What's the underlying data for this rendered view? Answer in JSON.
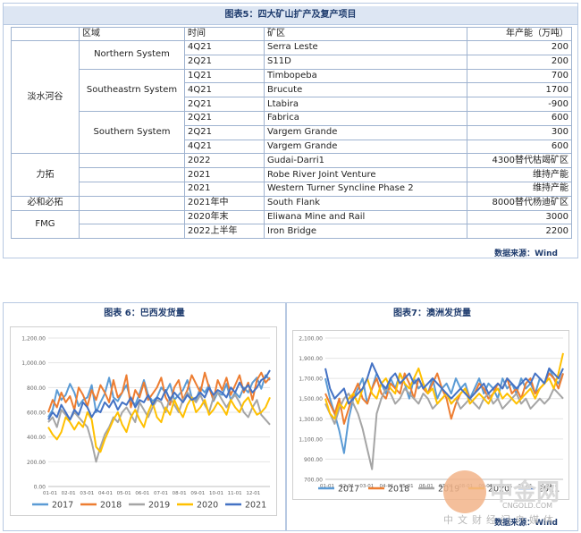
{
  "table5": {
    "title": "图表5：四大矿山扩产及复产项目",
    "headers": [
      "区域",
      "时间",
      "矿区",
      "年产能（万吨）"
    ],
    "companies": [
      {
        "name": "淡水河谷",
        "systems": [
          {
            "name": "Northern System",
            "rows": [
              {
                "time": "4Q21",
                "mine": "Serra Leste",
                "capacity": "200"
              },
              {
                "time": "2Q21",
                "mine": "S11D",
                "capacity": "200"
              }
            ]
          },
          {
            "name": "Southeastrn System",
            "rows": [
              {
                "time": "1Q21",
                "mine": "Timbopeba",
                "capacity": "700"
              },
              {
                "time": "4Q21",
                "mine": "Brucute",
                "capacity": "1700"
              },
              {
                "time": "2Q21",
                "mine": "Ltabira",
                "capacity": "-900"
              }
            ]
          },
          {
            "name": "Southern System",
            "rows": [
              {
                "time": "2Q21",
                "mine": "Fabrica",
                "capacity": "600"
              },
              {
                "time": "2Q21",
                "mine": "Vargem Grande",
                "capacity": "300"
              },
              {
                "time": "4Q21",
                "mine": "Vargem Grande",
                "capacity": "600"
              }
            ]
          }
        ]
      },
      {
        "name": "力拓",
        "rows": [
          {
            "time": "2022",
            "mine": "Gudai-Darri1",
            "capacity": "4300替代枯竭矿区"
          },
          {
            "time": "2021",
            "mine": "Robe River Joint Venture",
            "capacity": "维持产能"
          },
          {
            "time": "2021",
            "mine": "Western Turner Syncline Phase 2",
            "capacity": "维持产能"
          }
        ]
      },
      {
        "name": "必和必拓",
        "rows": [
          {
            "time": "2021年中",
            "mine": "South Flank",
            "capacity": "8000替代杨迪矿区"
          }
        ]
      },
      {
        "name": "FMG",
        "rows": [
          {
            "time": "2020年末",
            "mine": "Eliwana Mine and Rail",
            "capacity": "3000"
          },
          {
            "time": "2022上半年",
            "mine": "Iron Bridge",
            "capacity": "2200"
          }
        ]
      }
    ],
    "source": "数据来源：Wind"
  },
  "chart_data": [
    {
      "type": "line",
      "title": "图表 6：巴西发货量",
      "ylim": [
        0,
        1200
      ],
      "yticks": [
        "0.00",
        "200.00",
        "400.00",
        "600.00",
        "800.00",
        "1,000.00",
        "1,200.00"
      ],
      "xticks": [
        "01-01",
        "02-01",
        "03-01",
        "04-01",
        "05-01",
        "06-01",
        "07-01",
        "08-01",
        "09-01",
        "10-01",
        "11-01",
        "12-01"
      ],
      "grid": true,
      "legend": "bottom",
      "series": [
        {
          "name": "2017",
          "color": "#5b9bd5",
          "values": [
            560,
            620,
            780,
            700,
            740,
            830,
            760,
            650,
            700,
            720,
            820,
            600,
            680,
            750,
            880,
            720,
            690,
            760,
            820,
            700,
            660,
            750,
            860,
            740,
            690,
            720,
            800,
            760,
            830,
            700,
            740,
            780,
            860,
            720,
            700,
            800,
            760,
            820,
            690,
            760,
            740,
            830,
            700,
            760,
            720,
            800,
            760,
            840,
            880,
            790,
            900,
            860
          ]
        },
        {
          "name": "2018",
          "color": "#ed7d31",
          "values": [
            600,
            700,
            640,
            760,
            680,
            730,
            620,
            800,
            740,
            650,
            780,
            700,
            820,
            760,
            680,
            860,
            720,
            760,
            900,
            640,
            780,
            720,
            840,
            700,
            750,
            800,
            880,
            720,
            660,
            800,
            860,
            700,
            780,
            900,
            830,
            760,
            920,
            800,
            700,
            860,
            780,
            880,
            740,
            820,
            900,
            760,
            840,
            700,
            860,
            920,
            840,
            880
          ]
        },
        {
          "name": "2019",
          "color": "#a5a5a5",
          "values": [
            520,
            560,
            480,
            620,
            580,
            540,
            600,
            560,
            520,
            480,
            360,
            200,
            320,
            420,
            480,
            560,
            520,
            600,
            640,
            580,
            520,
            680,
            620,
            560,
            640,
            700,
            680,
            600,
            720,
            660,
            600,
            700,
            760,
            720,
            680,
            740,
            660,
            600,
            720,
            760,
            700,
            640,
            700,
            740,
            680,
            600,
            560,
            640,
            700,
            580,
            540,
            500
          ]
        },
        {
          "name": "2020",
          "color": "#ffc000",
          "values": [
            480,
            420,
            380,
            440,
            560,
            520,
            460,
            520,
            480,
            600,
            540,
            320,
            280,
            380,
            460,
            540,
            600,
            500,
            440,
            560,
            620,
            540,
            480,
            600,
            680,
            560,
            520,
            640,
            580,
            700,
            620,
            560,
            660,
            720,
            600,
            640,
            700,
            580,
            620,
            680,
            640,
            580,
            700,
            640,
            600,
            680,
            720,
            640,
            580,
            600,
            640,
            720
          ]
        },
        {
          "name": "2021",
          "color": "#4472c4",
          "values": [
            540,
            600,
            560,
            660,
            600,
            540,
            620,
            580,
            680,
            640,
            560,
            620,
            600,
            680,
            640,
            700,
            620,
            680,
            660,
            720,
            640,
            700,
            680,
            740,
            660,
            720,
            700,
            780,
            700,
            760,
            720,
            680,
            740,
            700,
            720,
            760,
            720,
            800,
            740,
            780,
            760,
            720,
            800,
            760,
            840,
            780,
            820,
            760,
            800,
            860,
            880,
            940
          ]
        }
      ]
    },
    {
      "type": "line",
      "title": "图表7：澳洲发货量",
      "ylim": [
        700,
        2100
      ],
      "yticks": [
        "700.00",
        "900.00",
        "1,100.00",
        "1,300.00",
        "1,500.00",
        "1,700.00",
        "1,900.00",
        "2,100.00"
      ],
      "xticks": [
        "01-01",
        "02-01",
        "03-01",
        "04-01",
        "05-01",
        "06-01",
        "07-01",
        "08-01",
        "09-01",
        "10-01",
        "11-01",
        "12-01"
      ],
      "grid": true,
      "legend": "bottom",
      "series": [
        {
          "name": "2017",
          "color": "#5b9bd5",
          "values": [
            1700,
            1500,
            1350,
            1180,
            960,
            1300,
            1500,
            1600,
            1700,
            1450,
            1600,
            1750,
            1650,
            1550,
            1700,
            1600,
            1750,
            1650,
            1500,
            1700,
            1600,
            1650,
            1550,
            1700,
            1500,
            1600,
            1650,
            1550,
            1700,
            1600,
            1650,
            1500,
            1600,
            1700,
            1550,
            1650,
            1600,
            1500,
            1700,
            1600,
            1650,
            1550,
            1700,
            1600,
            1650,
            1550,
            1700,
            1650,
            1800,
            1700,
            1650,
            1750
          ]
        },
        {
          "name": "2018",
          "color": "#ed7d31",
          "values": [
            1550,
            1450,
            1350,
            1500,
            1250,
            1400,
            1550,
            1650,
            1500,
            1450,
            1600,
            1700,
            1550,
            1500,
            1650,
            1600,
            1550,
            1750,
            1650,
            1500,
            1700,
            1600,
            1550,
            1650,
            1750,
            1600,
            1500,
            1300,
            1450,
            1550,
            1600,
            1500,
            1550,
            1650,
            1600,
            1500,
            1550,
            1650,
            1600,
            1700,
            1550,
            1600,
            1500,
            1650,
            1700,
            1550,
            1600,
            1650,
            1750,
            1700,
            1600,
            1750
          ]
        },
        {
          "name": "2019",
          "color": "#a5a5a5",
          "values": [
            1450,
            1350,
            1250,
            1400,
            1500,
            1550,
            1450,
            1350,
            1200,
            1000,
            800,
            1350,
            1500,
            1600,
            1550,
            1450,
            1500,
            1600,
            1550,
            1500,
            1450,
            1550,
            1500,
            1400,
            1450,
            1500,
            1550,
            1450,
            1500,
            1400,
            1450,
            1500,
            1450,
            1400,
            1500,
            1550,
            1450,
            1500,
            1400,
            1450,
            1500,
            1550,
            1450,
            1500,
            1400,
            1450,
            1500,
            1450,
            1500,
            1600,
            1550,
            1500
          ]
        },
        {
          "name": "2020",
          "color": "#ffc000",
          "values": [
            1500,
            1350,
            1300,
            1450,
            1400,
            1500,
            1550,
            1450,
            1600,
            1700,
            1550,
            1500,
            1650,
            1700,
            1600,
            1550,
            1750,
            1650,
            1600,
            1700,
            1800,
            1650,
            1550,
            1600,
            1450,
            1500,
            1550,
            1450,
            1500,
            1550,
            1600,
            1450,
            1500,
            1550,
            1500,
            1450,
            1550,
            1600,
            1500,
            1550,
            1500,
            1450,
            1500,
            1550,
            1600,
            1500,
            1600,
            1650,
            1700,
            1600,
            1750,
            1950
          ]
        },
        {
          "name": "2021",
          "color": "#4472c4",
          "values": [
            1800,
            1600,
            1500,
            1550,
            1600,
            1450,
            1500,
            1550,
            1600,
            1700,
            1850,
            1750,
            1650,
            1600,
            1700,
            1750,
            1650,
            1700,
            1750,
            1650,
            1700,
            1600,
            1650,
            1700,
            1650,
            1600,
            1550,
            1500,
            1550,
            1600,
            1550,
            1500,
            1550,
            1600,
            1650,
            1550,
            1600,
            1650,
            1600,
            1700,
            1650,
            1600,
            1650,
            1700,
            1650,
            1750,
            1700,
            1650,
            1800,
            1750,
            1700,
            1800
          ]
        }
      ]
    }
  ],
  "charts": {
    "source": "数据来源：Wind"
  },
  "watermark": {
    "brand": "中金网",
    "domain": "CNGOLD.COM",
    "tagline": "中文财经门户媒体"
  }
}
